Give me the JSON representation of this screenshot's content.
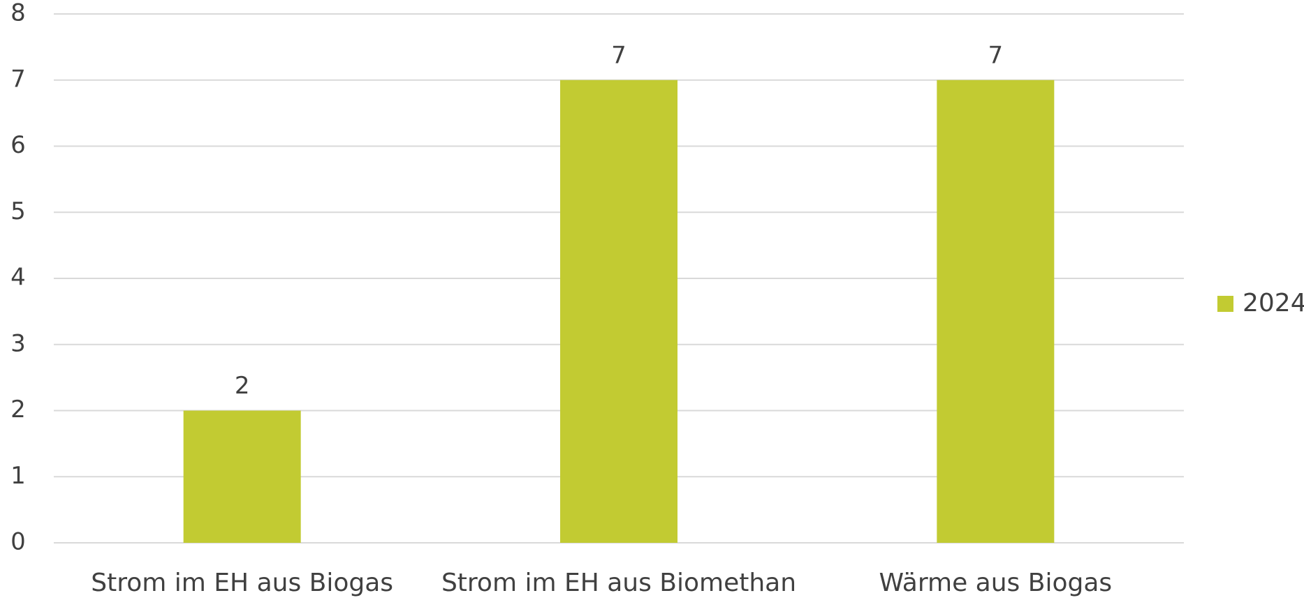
{
  "chart_data": {
    "type": "bar",
    "categories": [
      "Strom im EH aus Biogas",
      "Strom im EH aus Biomethan",
      "Wärme aus Biogas"
    ],
    "series": [
      {
        "name": "2024",
        "color": "#c2cb32",
        "values": [
          2,
          7,
          7
        ]
      }
    ],
    "ylim": [
      0,
      8
    ],
    "yticks": [
      0,
      1,
      2,
      3,
      4,
      5,
      6,
      7,
      8
    ],
    "grid": true,
    "data_labels": true,
    "legend": "right"
  }
}
